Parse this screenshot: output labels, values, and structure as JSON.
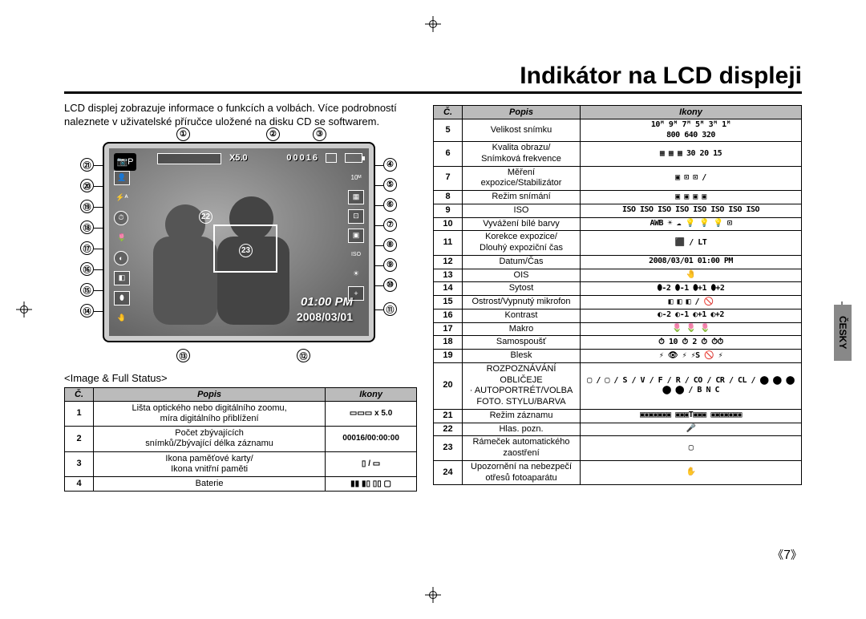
{
  "title": "Indikátor na LCD displeji",
  "language_tab": "ČESKY",
  "page_number": "7",
  "intro": "LCD displej zobrazuje informace o funkcích a volbách. Více podrobností naleznete v uživatelské příručce uložené na disku CD se softwarem.",
  "caption": "<Image & Full Status>",
  "lcd": {
    "zoom": "X5.0",
    "counter": "00016",
    "time": "01:00 PM",
    "date": "2008/03/01",
    "mode": "📷P",
    "center_callout_22": "22",
    "center_callout_23": "23"
  },
  "callouts_top": [
    "①",
    "②",
    "③"
  ],
  "callouts_right": [
    "④",
    "⑤",
    "⑥",
    "⑦",
    "⑧",
    "⑨",
    "⑩",
    "⑪"
  ],
  "callouts_left": [
    "㉑",
    "⑳",
    "⑲",
    "⑱",
    "⑰",
    "⑯",
    "⑮",
    "⑭"
  ],
  "callouts_bottom": [
    "⑬",
    "⑫"
  ],
  "left_table": {
    "headers": [
      "Č.",
      "Popis",
      "Ikony"
    ],
    "rows": [
      {
        "n": "1",
        "p": "Lišta optického nebo digitálního zoomu,\nmíra digitálního přiblížení",
        "i": "▭▭▭ x 5.0"
      },
      {
        "n": "2",
        "p": "Počet zbývajících\nsnímků/Zbývající délka záznamu",
        "i": "00016/00:00:00"
      },
      {
        "n": "3",
        "p": "Ikona paměťové karty/\nIkona vnitřní paměti",
        "i": "▯ / ▭"
      },
      {
        "n": "4",
        "p": "Baterie",
        "i": "▮▮ ▮▯ ▯▯ ▢"
      }
    ]
  },
  "right_table": {
    "headers": [
      "Č.",
      "Popis",
      "Ikony"
    ],
    "rows": [
      {
        "n": "5",
        "p": "Velikost snímku",
        "i": "10ᴹ 9ᴹ 7ᴹ 5ᴹ 3ᴹ 1ᴹ\n800 640 320"
      },
      {
        "n": "6",
        "p": "Kvalita obrazu/\nSnímková frekvence",
        "i": "▦ ▦ ▦ 30 20 15"
      },
      {
        "n": "7",
        "p": "Měření expozice/Stabilizátor",
        "i": "▣ ⊡ ⊡ /"
      },
      {
        "n": "8",
        "p": "Režim snímání",
        "i": "▣ ▣ ▣ ▣"
      },
      {
        "n": "9",
        "p": "ISO",
        "i": "ISO ISO ISO ISO ISO ISO ISO ISO"
      },
      {
        "n": "10",
        "p": "Vyvážení bílé barvy",
        "i": "AWB ☀ ☁ 💡 💡 💡 ⊡"
      },
      {
        "n": "11",
        "p": "Korekce expozice/\nDlouhý expoziční čas",
        "i": "⬛ / LT"
      },
      {
        "n": "12",
        "p": "Datum/Čas",
        "i": "2008/03/01 01:00 PM"
      },
      {
        "n": "13",
        "p": "OIS",
        "i": "🤚"
      },
      {
        "n": "14",
        "p": "Sytost",
        "i": "⬮-2 ⬮-1 ⬮+1 ⬮+2"
      },
      {
        "n": "15",
        "p": "Ostrost/Vypnutý mikrofon",
        "i": "◧ ◧ ◧ / 🚫"
      },
      {
        "n": "16",
        "p": "Kontrast",
        "i": "◐-2 ◐-1 ◐+1 ◐+2"
      },
      {
        "n": "17",
        "p": "Makro",
        "i": "🌷 🌷 🌷"
      },
      {
        "n": "18",
        "p": "Samospoušť",
        "i": "⏱ 10 ⏱ 2 ⏱ ⏱⏱"
      },
      {
        "n": "19",
        "p": "Blesk",
        "i": "⚡ 👁 ⚡ ⚡S 🚫 ⚡"
      },
      {
        "n": "20",
        "p": "ROZPOZNÁVÁNÍ OBLIČEJE\n· AUTOPORTRÉT/VOLBA\nFOTO. STYLU/BARVA",
        "i": "▢ / ▢ / S / V / F / R / CO / CR / CL / ⬤ ⬤ ⬤ ⬤ ⬤ / B N C"
      },
      {
        "n": "21",
        "p": "Režim záznamu",
        "i": "▣▣▣▣▣▣▣ ▣▣▣T▣▣▣ ▣▣▣▣▣▣▣"
      },
      {
        "n": "22",
        "p": "Hlas. pozn.",
        "i": "🎤"
      },
      {
        "n": "23",
        "p": "Rámeček automatického\nzaostření",
        "i": "▢"
      },
      {
        "n": "24",
        "p": "Upozornění na nebezpečí\notřesů fotoaparátu",
        "i": "✋"
      }
    ]
  }
}
